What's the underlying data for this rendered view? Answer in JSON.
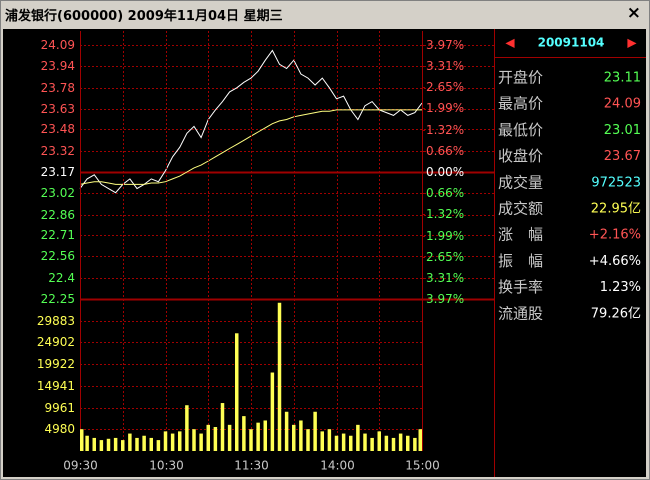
{
  "title": "浦发银行(600000) 2009年11月04日 星期三",
  "chart_data": [
    {
      "type": "line",
      "ylim": [
        22.25,
        24.09
      ],
      "yticks": [
        24.09,
        23.94,
        23.78,
        23.63,
        23.48,
        23.32,
        23.17,
        23.02,
        22.86,
        22.71,
        22.56,
        22.4,
        22.25
      ],
      "y2lim": [
        -3.97,
        3.97
      ],
      "y2ticks": [
        {
          "value": 3.97,
          "label": "3.97%"
        },
        {
          "value": 3.31,
          "label": "3.31%"
        },
        {
          "value": 2.65,
          "label": "2.65%"
        },
        {
          "value": 1.99,
          "label": "1.99%"
        },
        {
          "value": 1.32,
          "label": "1.32%"
        },
        {
          "value": 0.66,
          "label": "0.66%"
        },
        {
          "value": 0,
          "label": "0.00%"
        },
        {
          "value": -0.66,
          "label": "0.66%"
        },
        {
          "value": -1.32,
          "label": "1.32%"
        },
        {
          "value": -1.99,
          "label": "1.99%"
        },
        {
          "value": -2.65,
          "label": "2.65%"
        },
        {
          "value": -3.31,
          "label": "3.31%"
        },
        {
          "value": -3.97,
          "label": "3.97%"
        }
      ],
      "xlim": [
        0,
        240
      ],
      "x": [
        0,
        5,
        10,
        15,
        20,
        25,
        30,
        35,
        40,
        45,
        50,
        55,
        60,
        65,
        70,
        75,
        80,
        85,
        90,
        95,
        100,
        105,
        110,
        115,
        120,
        125,
        130,
        135,
        140,
        145,
        150,
        155,
        160,
        165,
        170,
        175,
        180,
        185,
        190,
        195,
        200,
        205,
        210,
        215,
        220,
        225,
        230,
        235,
        240
      ],
      "series": [
        {
          "color": "#ffffff",
          "values": [
            23.05,
            23.12,
            23.15,
            23.08,
            23.05,
            23.02,
            23.08,
            23.12,
            23.05,
            23.08,
            23.12,
            23.1,
            23.18,
            23.28,
            23.35,
            23.45,
            23.5,
            23.42,
            23.55,
            23.62,
            23.68,
            23.75,
            23.78,
            23.82,
            23.85,
            23.9,
            23.98,
            24.05,
            23.95,
            23.92,
            23.98,
            23.88,
            23.85,
            23.8,
            23.85,
            23.78,
            23.7,
            23.72,
            23.62,
            23.55,
            23.65,
            23.68,
            23.62,
            23.6,
            23.58,
            23.62,
            23.58,
            23.6,
            23.67
          ]
        },
        {
          "color": "#ffff80",
          "values": [
            23.08,
            23.09,
            23.1,
            23.1,
            23.09,
            23.08,
            23.08,
            23.08,
            23.08,
            23.08,
            23.09,
            23.09,
            23.1,
            23.12,
            23.14,
            23.17,
            23.2,
            23.22,
            23.25,
            23.28,
            23.31,
            23.34,
            23.37,
            23.4,
            23.43,
            23.46,
            23.49,
            23.52,
            23.54,
            23.55,
            23.57,
            23.58,
            23.59,
            23.6,
            23.61,
            23.61,
            23.62,
            23.62,
            23.62,
            23.62,
            23.62,
            23.62,
            23.62,
            23.62,
            23.62,
            23.62,
            23.62,
            23.62,
            23.62
          ]
        }
      ],
      "up_color": "#ff5454",
      "down_color": "#54ff54",
      "flat_color": "#ffffff",
      "grid_color": "#a00000",
      "grid": true
    },
    {
      "type": "bar",
      "ylim": [
        0,
        34864
      ],
      "yticks": [
        29883,
        24902,
        19922,
        14941,
        9961,
        4980
      ],
      "xlim": [
        0,
        240
      ],
      "xticks": [
        {
          "value": 0,
          "label": "09:30"
        },
        {
          "value": 60,
          "label": "10:30"
        },
        {
          "value": 120,
          "label": "11:30"
        },
        {
          "value": 180,
          "label": "14:00"
        },
        {
          "value": 240,
          "label": "15:00"
        }
      ],
      "x": [
        0,
        5,
        10,
        15,
        20,
        25,
        30,
        35,
        40,
        45,
        50,
        55,
        60,
        65,
        70,
        75,
        80,
        85,
        90,
        95,
        100,
        105,
        110,
        115,
        120,
        125,
        130,
        135,
        140,
        145,
        150,
        155,
        160,
        165,
        170,
        175,
        180,
        185,
        190,
        195,
        200,
        205,
        210,
        215,
        220,
        225,
        230,
        235,
        240
      ],
      "values": [
        5000,
        3500,
        3000,
        2500,
        2800,
        3000,
        2500,
        4000,
        3000,
        3500,
        3000,
        2500,
        4500,
        4000,
        4500,
        10500,
        5000,
        4000,
        6000,
        5500,
        11000,
        6000,
        27000,
        8000,
        5000,
        6500,
        7000,
        18000,
        34000,
        9000,
        6000,
        7000,
        5000,
        9000,
        4500,
        5000,
        3500,
        4000,
        3500,
        6000,
        4000,
        3000,
        4500,
        3500,
        3000,
        4000,
        3500,
        3000,
        5000
      ],
      "color": "#ffff54",
      "tick_color": "#ffff54",
      "grid_color": "#a00000",
      "grid": true
    }
  ],
  "panel": {
    "date": "20091104",
    "rows": [
      {
        "label": "开盘价",
        "value": "23.11",
        "color": "#54ff54"
      },
      {
        "label": "最高价",
        "value": "24.09",
        "color": "#ff5454"
      },
      {
        "label": "最低价",
        "value": "23.01",
        "color": "#54ff54"
      },
      {
        "label": "收盘价",
        "value": "23.67",
        "color": "#ff5454"
      },
      {
        "label": "成交量",
        "value": "972523",
        "color": "#54ffff"
      },
      {
        "label": "成交额",
        "value": "22.95亿",
        "color": "#ffff54"
      },
      {
        "label": "涨　幅",
        "value": "+2.16%",
        "color": "#ff5454"
      },
      {
        "label": "振　幅",
        "value": "+4.66%",
        "color": "#ffffff"
      },
      {
        "label": "换手率",
        "value": "1.23%",
        "color": "#ffffff"
      },
      {
        "label": "流通股",
        "value": "79.26亿",
        "color": "#ffffff"
      }
    ]
  }
}
